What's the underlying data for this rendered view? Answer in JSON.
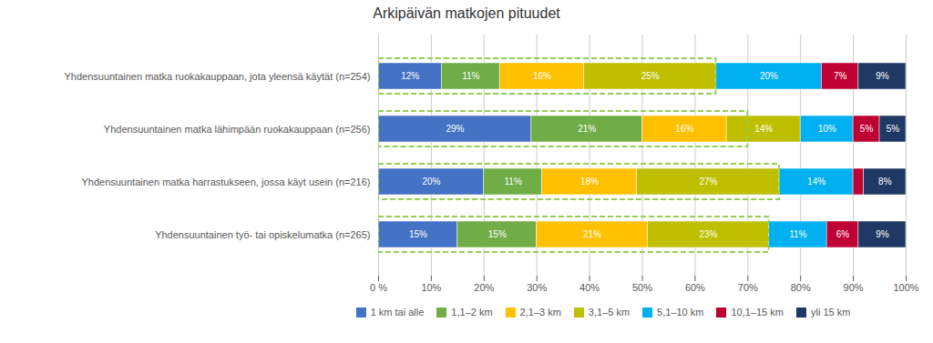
{
  "chart_data": {
    "type": "bar",
    "title": "Arkipäivän matkojen pituudet",
    "orientation": "horizontal",
    "stacked": true,
    "data_labels": true,
    "grid": true,
    "legend": "bottom",
    "categories": [
      "Yhdensuuntainen matka ruokakauppaan, jota yleensä käytät (n=254)",
      "Yhdensuuntainen matka lähimpään ruokakauppaan (n=256)",
      "Yhdensuuntainen matka harrastukseen, jossa käyt usein (n=216)",
      "Yhdensuuntainen työ- tai opiskelumatka (n=265)"
    ],
    "series": [
      {
        "name": "1 km tai alle",
        "color": "#4472C4",
        "values": [
          12,
          29,
          20,
          15
        ],
        "value_labels": [
          "12%",
          "29%",
          "20%",
          "15%"
        ]
      },
      {
        "name": "1,1–2 km",
        "color": "#70AD47",
        "values": [
          11,
          21,
          11,
          15
        ],
        "value_labels": [
          "11%",
          "21%",
          "11%",
          "15%"
        ]
      },
      {
        "name": "2,1–3 km",
        "color": "#FFC000",
        "values": [
          16,
          16,
          18,
          21
        ],
        "value_labels": [
          "16%",
          "16%",
          "18%",
          "21%"
        ]
      },
      {
        "name": "3,1–5 km",
        "color": "#BFBF00",
        "values": [
          25,
          14,
          27,
          23
        ],
        "value_labels": [
          "25%",
          "14%",
          "27%",
          "23%"
        ]
      },
      {
        "name": "5,1–10 km",
        "color": "#00B0F0",
        "values": [
          20,
          10,
          14,
          11
        ],
        "value_labels": [
          "20%",
          "10%",
          "14%",
          "11%"
        ]
      },
      {
        "name": "10,1–15 km",
        "color": "#BE0032",
        "values": [
          7,
          5,
          2,
          6
        ],
        "value_labels": [
          "7%",
          "5%",
          null,
          "6%"
        ]
      },
      {
        "name": "yli 15 km",
        "color": "#1F3864",
        "values": [
          9,
          5,
          8,
          9
        ],
        "value_labels": [
          "9%",
          "5%",
          "8%",
          "9%"
        ]
      }
    ],
    "highlight": {
      "values": [
        64,
        70,
        76,
        74
      ],
      "color": "#92D050",
      "line_style": "dashed"
    },
    "xlim": [
      0,
      100
    ],
    "xticks": [
      {
        "value": 0,
        "label": "0 %"
      },
      {
        "value": 10,
        "label": "10%"
      },
      {
        "value": 20,
        "label": "20%"
      },
      {
        "value": 30,
        "label": "30%"
      },
      {
        "value": 40,
        "label": "40%"
      },
      {
        "value": 50,
        "label": "50%"
      },
      {
        "value": 60,
        "label": "60%"
      },
      {
        "value": 70,
        "label": "70%"
      },
      {
        "value": 80,
        "label": "80%"
      },
      {
        "value": 90,
        "label": "90%"
      },
      {
        "value": 100,
        "label": "100%"
      }
    ]
  }
}
